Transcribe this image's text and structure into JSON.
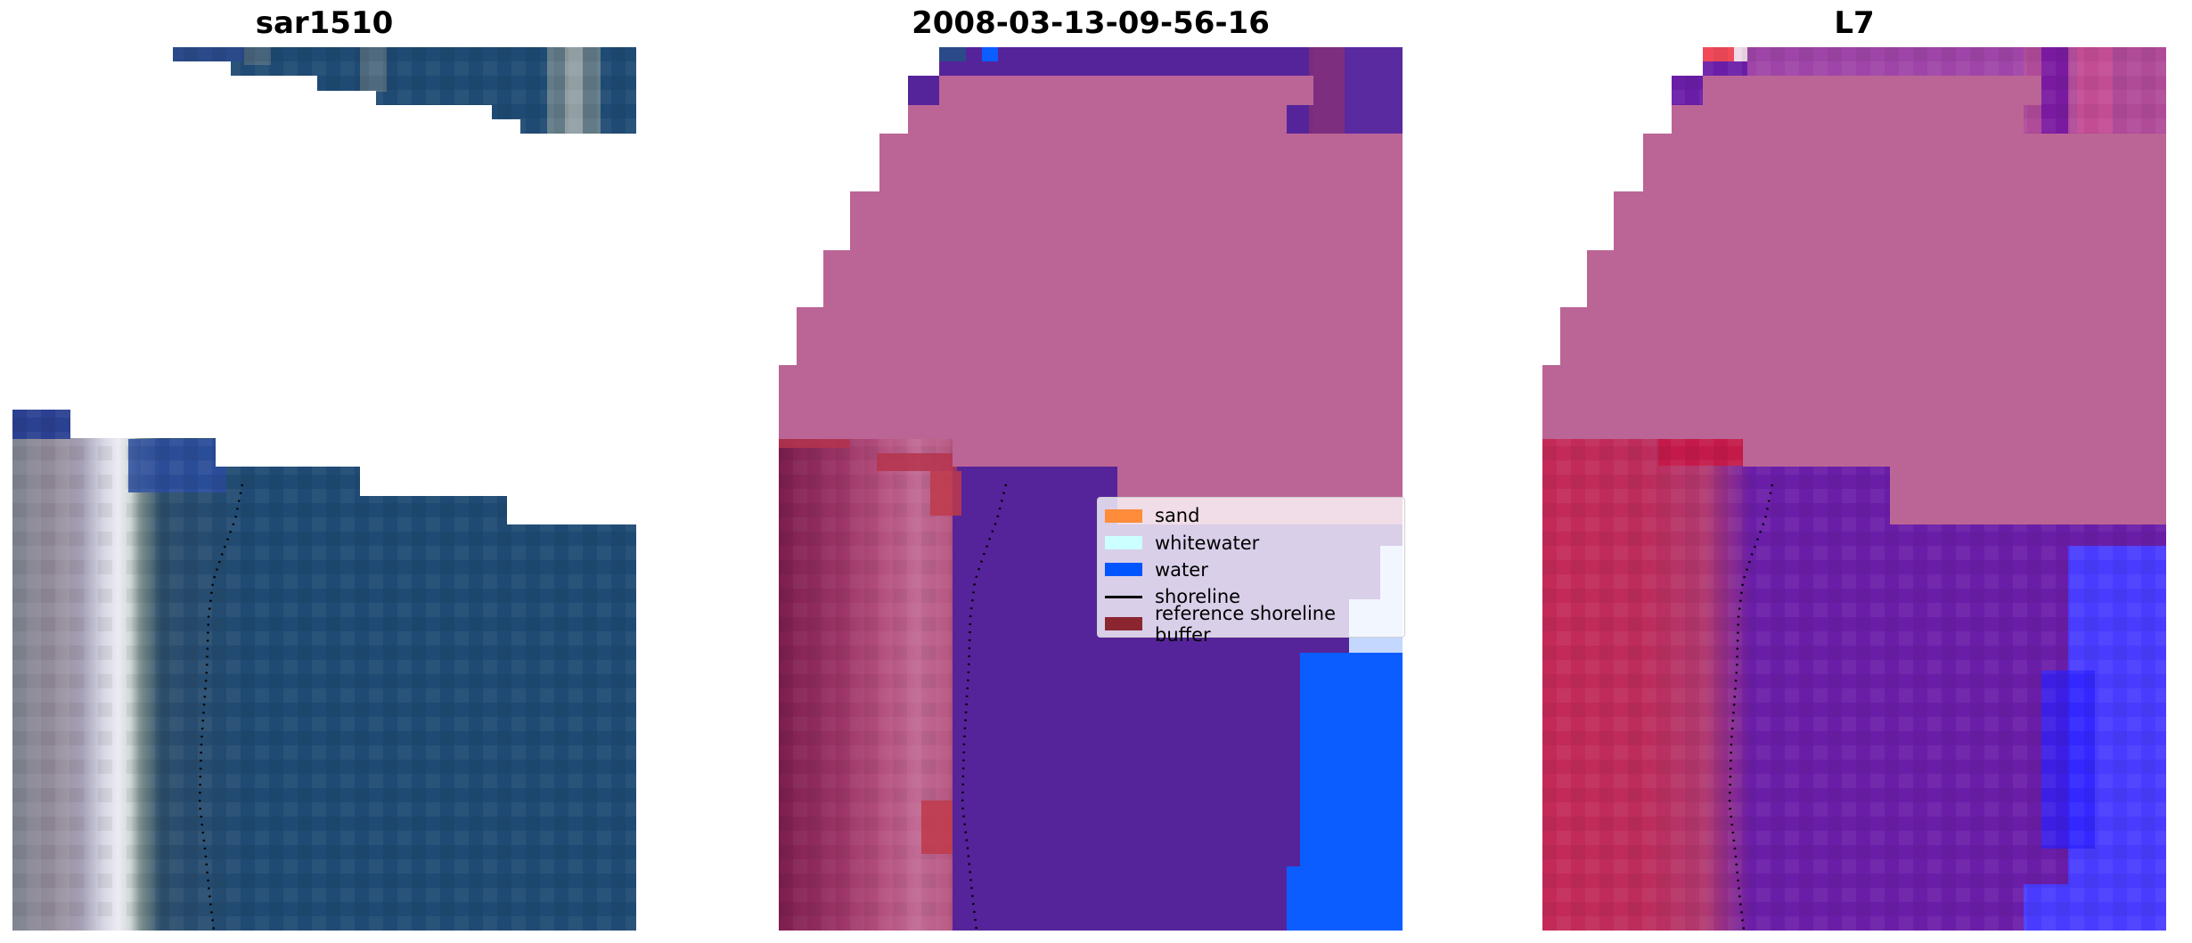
{
  "panels": [
    {
      "title": "sar1510",
      "kind": "rgb"
    },
    {
      "title": "2008-03-13-09-56-16",
      "kind": "classified"
    },
    {
      "title": "L7",
      "kind": "index"
    }
  ],
  "legend": {
    "items": [
      {
        "label": "sand",
        "color": "#ff8c3b",
        "type": "patch"
      },
      {
        "label": "whitewater",
        "color": "#ccffff",
        "type": "patch"
      },
      {
        "label": "water",
        "color": "#0055ff",
        "type": "patch"
      },
      {
        "label": "shoreline",
        "color": "#000000",
        "type": "line"
      },
      {
        "label": "reference shoreline buffer",
        "color": "#8b2630",
        "type": "patch"
      }
    ]
  },
  "colors": {
    "nodata_overlay": "#bb6596",
    "water_class": "#0b5dff",
    "whitewater_class": "#c4d7ff",
    "rgb_water": "#1f4a73",
    "rgb_beach": "#e6e2ee",
    "index_land": "#c42a58",
    "index_mid": "#6a1ea8",
    "index_water": "#4a3cff"
  },
  "icons": [
    "shoreline-dotted-line"
  ]
}
